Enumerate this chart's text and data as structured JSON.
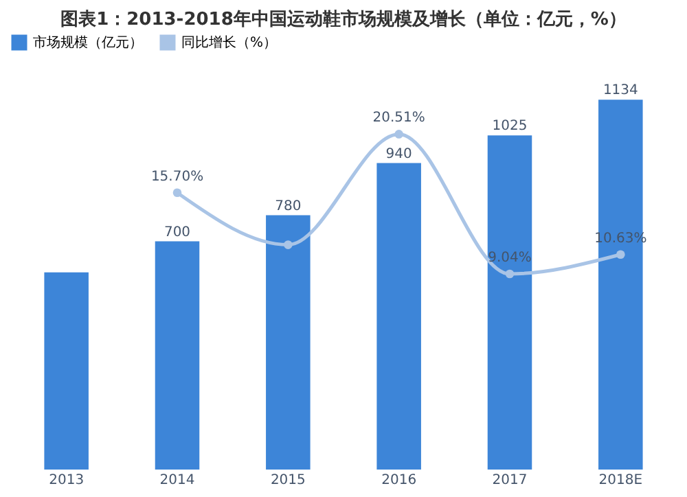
{
  "chart_data": {
    "type": "bar",
    "title": "图表1：2013-2018年中国运动鞋市场规模及增长（单位：亿元，%）",
    "categories": [
      "2013",
      "2014",
      "2015",
      "2016",
      "2017",
      "2018E"
    ],
    "series": [
      {
        "name": "市场规模（亿元）",
        "color": "#3d85d8",
        "values": [
          605,
          700,
          780,
          940,
          1025,
          1134
        ],
        "value_labels": [
          null,
          "700",
          "780",
          "940",
          "1025",
          "1134"
        ]
      },
      {
        "name": "同比增长（%）",
        "type": "line",
        "axis": "y2",
        "color": "#a9c4e6",
        "marker": "circle",
        "values": [
          null,
          15.7,
          11.43,
          20.51,
          9.04,
          10.63
        ],
        "value_labels": [
          null,
          "15.70%",
          null,
          "20.51%",
          "9.04%",
          "10.63%"
        ]
      }
    ],
    "legend": "top",
    "grid": false,
    "tick_labels": "x"
  }
}
